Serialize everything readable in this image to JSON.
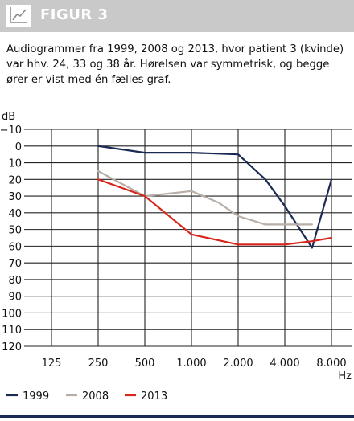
{
  "header": {
    "title": "FIGUR 3",
    "icon": "line-chart-icon"
  },
  "caption": "Audiogrammer fra 1999, 2008 og 2013, hvor patient 3 (kvinde) var hhv. 24, 33 og 38 år. Hørelsen var symmetrisk, og begge ører er vist med én fælles graf.",
  "chart_data": {
    "type": "line",
    "ylabel": "dB",
    "xlabel": "Hz",
    "ylim": [
      -10,
      120
    ],
    "y_inverted": true,
    "y_ticks": [
      "−10",
      "0",
      "10",
      "20",
      "30",
      "40",
      "50",
      "60",
      "70",
      "80",
      "90",
      "100",
      "110",
      "120"
    ],
    "y_tick_values": [
      -10,
      0,
      10,
      20,
      30,
      40,
      50,
      60,
      70,
      80,
      90,
      100,
      110,
      120
    ],
    "x_scale": "log2",
    "x_ticks": [
      "125",
      "250",
      "500",
      "1.000",
      "2.000",
      "4.000",
      "8.000"
    ],
    "x_tick_values": [
      125,
      250,
      500,
      1000,
      2000,
      4000,
      8000
    ],
    "grid": "vertical",
    "legend_position": "bottom",
    "series": [
      {
        "name": "1999",
        "color": "#1b2a55",
        "points": [
          [
            250,
            0
          ],
          [
            500,
            4
          ],
          [
            1000,
            4
          ],
          [
            2000,
            5
          ],
          [
            3000,
            20
          ],
          [
            4000,
            36
          ],
          [
            6000,
            61
          ],
          [
            8000,
            20
          ]
        ]
      },
      {
        "name": "2008",
        "color": "#b8aea6",
        "points": [
          [
            250,
            15
          ],
          [
            500,
            30
          ],
          [
            1000,
            27
          ],
          [
            1500,
            34
          ],
          [
            2000,
            42
          ],
          [
            3000,
            47
          ],
          [
            4000,
            47
          ],
          [
            6000,
            47
          ]
        ]
      },
      {
        "name": "2013",
        "color": "#d8261c",
        "points": [
          [
            250,
            20
          ],
          [
            500,
            30
          ],
          [
            1000,
            53
          ],
          [
            2000,
            59
          ],
          [
            4000,
            59
          ],
          [
            6000,
            57
          ],
          [
            8000,
            55
          ]
        ]
      }
    ]
  }
}
